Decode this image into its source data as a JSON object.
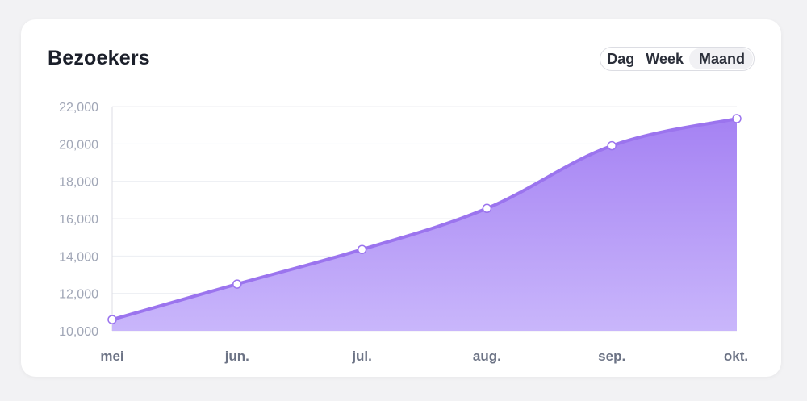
{
  "header": {
    "title": "Bezoekers"
  },
  "range_toggle": {
    "options": [
      "Dag",
      "Week",
      "Maand"
    ],
    "selected": "Maand"
  },
  "colors": {
    "line": "#9b74ee",
    "fill_top": "#a582f3",
    "fill_bottom": "#c9b6fb",
    "grid": "#eceef2"
  },
  "chart_data": {
    "type": "area",
    "categories": [
      "mei",
      "jun.",
      "jul.",
      "aug.",
      "sep.",
      "okt."
    ],
    "values": [
      10600,
      12500,
      14350,
      16550,
      19900,
      21350
    ],
    "ylim": [
      10000,
      22000
    ],
    "yticks": [
      "10,000",
      "12,000",
      "14,000",
      "16,000",
      "18,000",
      "20,000",
      "22,000"
    ],
    "grid": true
  }
}
